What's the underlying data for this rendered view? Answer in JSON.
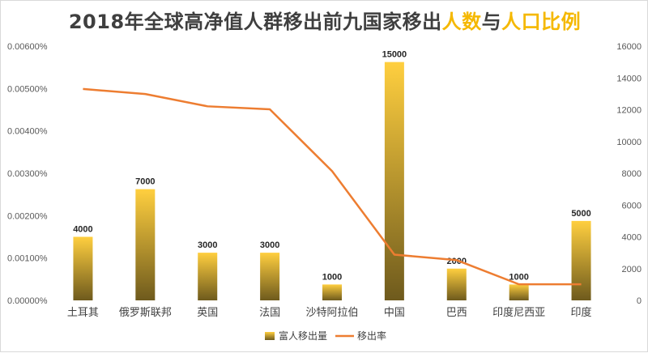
{
  "title": {
    "part1": "2018年全球高净值人群移出前九国家移出",
    "part2": "人数",
    "part3": "与",
    "part4": "人口比例"
  },
  "colors": {
    "bar_top": "#ffcf3f",
    "bar_bottom": "#6e5a1d",
    "line": "#ed7d31",
    "title_highlight": "#f5b800"
  },
  "chart_data": {
    "type": "bar+line",
    "title": "2018年全球高净值人群移出前九国家移出人数与人口比例",
    "categories": [
      "土耳其",
      "俄罗斯联邦",
      "英国",
      "法国",
      "沙特阿拉伯",
      "中国",
      "巴西",
      "印度尼西亚",
      "印度"
    ],
    "series": [
      {
        "name": "富人移出量",
        "type": "bar",
        "axis": "right",
        "values": [
          4000,
          7000,
          3000,
          3000,
          1000,
          15000,
          2000,
          1000,
          5000
        ],
        "labels": [
          "4000",
          "7000",
          "3000",
          "3000",
          "1000",
          "15000",
          "2000",
          "1000",
          "5000"
        ]
      },
      {
        "name": "移出率",
        "type": "line",
        "axis": "left",
        "values": [
          0.00499,
          0.00487,
          0.00458,
          0.00451,
          0.00305,
          0.00108,
          0.00095,
          0.00038,
          0.00038
        ]
      }
    ],
    "left_axis": {
      "ylim": [
        0,
        0.006
      ],
      "ticks": [
        "0.00000%",
        "0.00100%",
        "0.00200%",
        "0.00300%",
        "0.00400%",
        "0.00500%",
        "0.00600%"
      ]
    },
    "right_axis": {
      "ylim": [
        0,
        16000
      ],
      "ticks": [
        "0",
        "2000",
        "4000",
        "6000",
        "8000",
        "10000",
        "12000",
        "14000",
        "16000"
      ]
    },
    "grid": false,
    "legend_position": "bottom"
  }
}
